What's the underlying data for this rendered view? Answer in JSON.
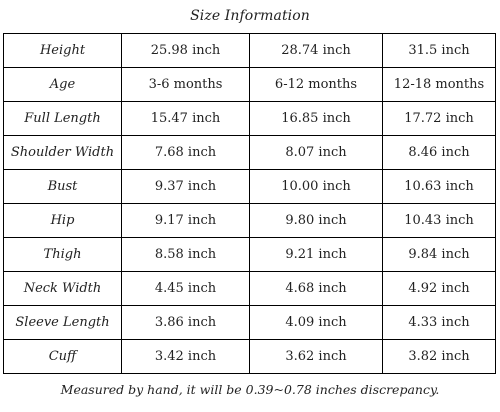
{
  "title": "Size Information",
  "rows": [
    {
      "label": "Height",
      "values": [
        "25.98 inch",
        "28.74 inch",
        "31.5 inch"
      ]
    },
    {
      "label": "Age",
      "values": [
        "3-6 months",
        "6-12 months",
        "12-18 months"
      ]
    },
    {
      "label": "Full Length",
      "values": [
        "15.47 inch",
        "16.85 inch",
        "17.72 inch"
      ]
    },
    {
      "label": "Shoulder Width",
      "values": [
        "7.68 inch",
        "8.07 inch",
        "8.46 inch"
      ]
    },
    {
      "label": "Bust",
      "values": [
        "9.37 inch",
        "10.00 inch",
        "10.63 inch"
      ]
    },
    {
      "label": "Hip",
      "values": [
        "9.17 inch",
        "9.80 inch",
        "10.43 inch"
      ]
    },
    {
      "label": "Thigh",
      "values": [
        "8.58 inch",
        "9.21 inch",
        "9.84 inch"
      ]
    },
    {
      "label": "Neck Width",
      "values": [
        "4.45 inch",
        "4.68 inch",
        "4.92 inch"
      ]
    },
    {
      "label": "Sleeve Length",
      "values": [
        "3.86 inch",
        "4.09 inch",
        "4.33 inch"
      ]
    },
    {
      "label": "Cuff",
      "values": [
        "3.42 inch",
        "3.62 inch",
        "3.82 inch"
      ]
    }
  ],
  "note": "Measured by hand, it will be 0.39~0.78 inches discrepancy."
}
